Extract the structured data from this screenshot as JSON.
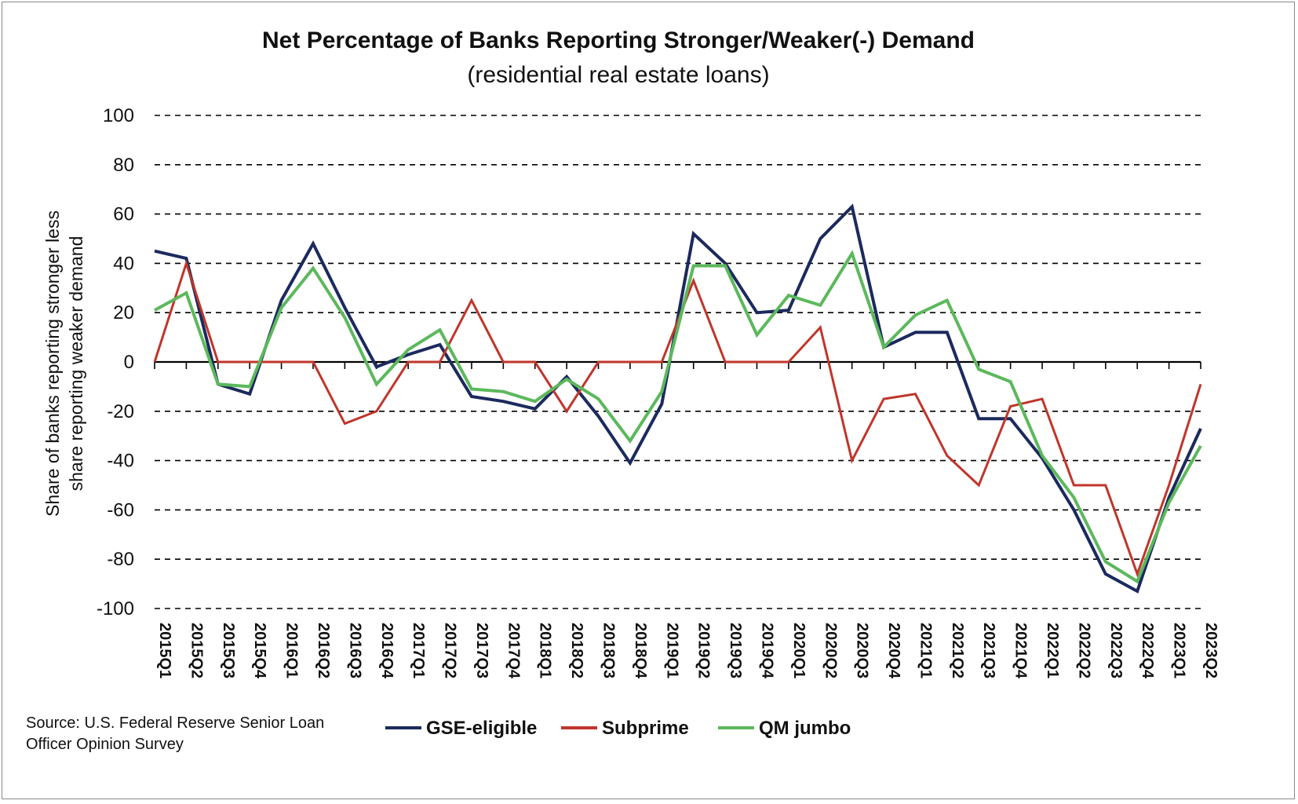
{
  "chart_data": {
    "type": "line",
    "title": "Net Percentage of Banks Reporting Stronger/Weaker(-) Demand",
    "subtitle": "(residential real estate loans)",
    "ylabel_line1": "Share of banks reporting stronger less",
    "ylabel_line2": "share reporting weaker demand",
    "ylim": [
      -100,
      100
    ],
    "yticks": [
      100,
      80,
      60,
      40,
      20,
      0,
      -20,
      -40,
      -60,
      -80,
      -100
    ],
    "grid": "horizontal-dashed",
    "legend_position": "bottom",
    "source_line1": "Source: U.S. Federal Reserve Senior Loan",
    "source_line2": "Officer Opinion Survey",
    "categories": [
      "2015Q1",
      "2015Q2",
      "2015Q3",
      "2015Q4",
      "2016Q1",
      "2016Q2",
      "2016Q3",
      "2016Q4",
      "2017Q1",
      "2017Q2",
      "2017Q3",
      "2017Q4",
      "2018Q1",
      "2018Q2",
      "2018Q3",
      "2018Q4",
      "2019Q1",
      "2019Q2",
      "2019Q3",
      "2019Q4",
      "2020Q1",
      "2020Q2",
      "2020Q3",
      "2020Q4",
      "2021Q1",
      "2021Q2",
      "2021Q3",
      "2021Q4",
      "2022Q1",
      "2022Q2",
      "2022Q3",
      "2022Q4",
      "2023Q1",
      "2023Q2"
    ],
    "series": [
      {
        "name": "GSE-eligible",
        "color": "#1b2a5e",
        "values": [
          45,
          42,
          -9,
          -13,
          25,
          48,
          22,
          -2,
          3,
          7,
          -14,
          -16,
          -19,
          -6,
          -22,
          -41,
          -17,
          52,
          40,
          20,
          21,
          50,
          63,
          6,
          12,
          12,
          -23,
          -23,
          -39,
          -60,
          -86,
          -93,
          -55,
          -27
        ]
      },
      {
        "name": "Subprime",
        "color": "#c0352b",
        "values": [
          0,
          40,
          0,
          0,
          0,
          0,
          -25,
          -20,
          0,
          0,
          25,
          0,
          0,
          -20,
          0,
          0,
          0,
          33,
          0,
          0,
          0,
          14,
          -40,
          -15,
          -13,
          -38,
          -50,
          -18,
          -15,
          -50,
          -50,
          -86,
          -50,
          -9
        ]
      },
      {
        "name": "QM jumbo",
        "color": "#5cb85c",
        "values": [
          21,
          28,
          -9,
          -10,
          22,
          38,
          18,
          -9,
          5,
          13,
          -11,
          -12,
          -16,
          -7,
          -15,
          -32,
          -12,
          39,
          39,
          11,
          27,
          23,
          44,
          6,
          19,
          25,
          -3,
          -8,
          -38,
          -55,
          -81,
          -89,
          -57,
          -34
        ]
      }
    ]
  }
}
